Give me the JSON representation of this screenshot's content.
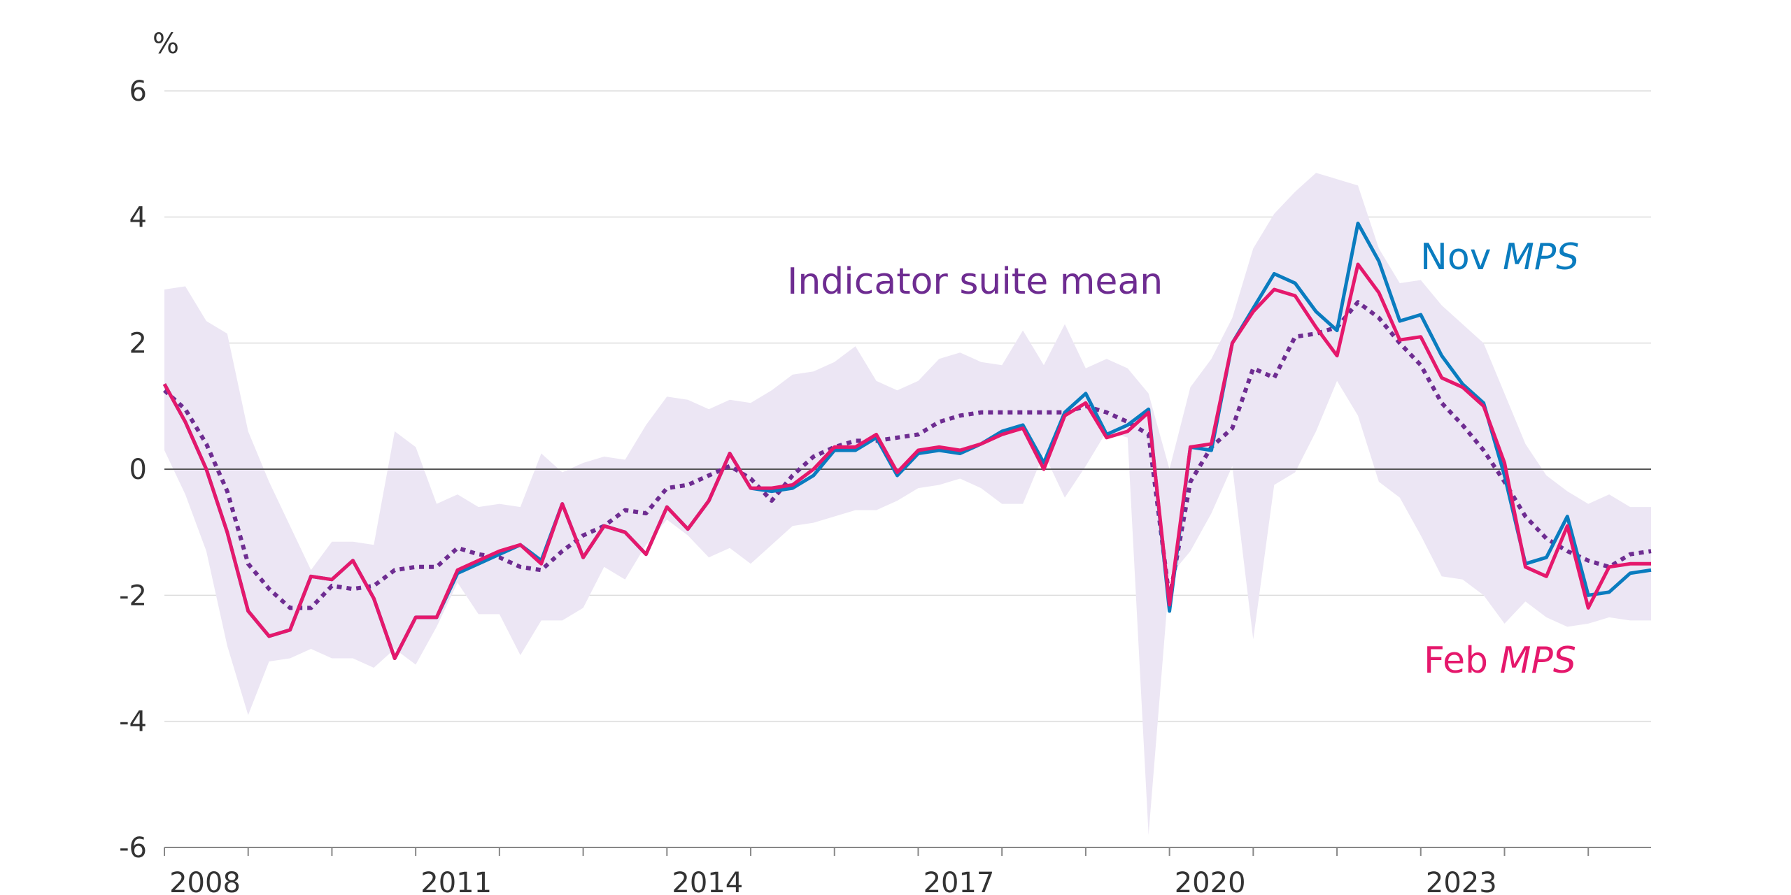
{
  "chart_data": {
    "type": "line",
    "ylabel": "%",
    "ylim": [
      -6,
      6
    ],
    "yticks": [
      6,
      4,
      2,
      0,
      -2,
      -4,
      -6
    ],
    "xlim": [
      2008.0,
      2025.75
    ],
    "xticks": [
      2008,
      2011,
      2014,
      2017,
      2020,
      2023
    ],
    "grid": true,
    "legend": "inline labels",
    "colors": {
      "range": "#ece6f4",
      "suite_mean": "#6e2c91",
      "nov": "#0a7cbf",
      "feb": "#e5186c",
      "grid": "#dddddd",
      "zero": "#555555",
      "axis": "#888888"
    },
    "annotations": [
      {
        "series": "suite_mean",
        "text": "Indicator suite mean"
      },
      {
        "series": "nov",
        "text": "Nov ",
        "italic": "MPS"
      },
      {
        "series": "feb",
        "text": "Feb ",
        "italic": "MPS"
      }
    ],
    "x": [
      2008.0,
      2008.25,
      2008.5,
      2008.75,
      2009.0,
      2009.25,
      2009.5,
      2009.75,
      2010.0,
      2010.25,
      2010.5,
      2010.75,
      2011.0,
      2011.25,
      2011.5,
      2011.75,
      2012.0,
      2012.25,
      2012.5,
      2012.75,
      2013.0,
      2013.25,
      2013.5,
      2013.75,
      2014.0,
      2014.25,
      2014.5,
      2014.75,
      2015.0,
      2015.25,
      2015.5,
      2015.75,
      2016.0,
      2016.25,
      2016.5,
      2016.75,
      2017.0,
      2017.25,
      2017.5,
      2017.75,
      2018.0,
      2018.25,
      2018.5,
      2018.75,
      2019.0,
      2019.25,
      2019.5,
      2019.75,
      2020.0,
      2020.25,
      2020.5,
      2020.75,
      2021.0,
      2021.25,
      2021.5,
      2021.75,
      2022.0,
      2022.25,
      2022.5,
      2022.75,
      2023.0,
      2023.25,
      2023.5,
      2023.75,
      2024.0,
      2024.25,
      2024.5,
      2024.75,
      2025.0,
      2025.25,
      2025.5,
      2025.75
    ],
    "range_upper": [
      2.85,
      2.9,
      2.35,
      2.15,
      0.6,
      -0.2,
      -0.9,
      -1.6,
      -1.15,
      -1.15,
      -1.2,
      0.6,
      0.35,
      -0.55,
      -0.4,
      -0.6,
      -0.55,
      -0.6,
      0.25,
      -0.05,
      0.1,
      0.2,
      0.15,
      0.7,
      1.15,
      1.1,
      0.95,
      1.1,
      1.05,
      1.25,
      1.5,
      1.55,
      1.7,
      1.95,
      1.4,
      1.25,
      1.4,
      1.75,
      1.85,
      1.7,
      1.65,
      2.2,
      1.65,
      2.3,
      1.6,
      1.75,
      1.6,
      1.2,
      0.0,
      1.3,
      1.75,
      2.4,
      3.5,
      4.05,
      4.4,
      4.7,
      4.6,
      4.5,
      3.5,
      2.95,
      3.0,
      2.6,
      2.3,
      2.0,
      1.2,
      0.4,
      -0.1,
      -0.35,
      -0.55,
      -0.4,
      -0.6,
      -0.6
    ],
    "range_lower": [
      0.3,
      -0.4,
      -1.3,
      -2.8,
      -3.9,
      -3.05,
      -3.0,
      -2.85,
      -3.0,
      -3.0,
      -3.15,
      -2.85,
      -3.1,
      -2.5,
      -1.8,
      -2.3,
      -2.3,
      -2.95,
      -2.4,
      -2.4,
      -2.2,
      -1.55,
      -1.75,
      -1.2,
      -0.8,
      -1.05,
      -1.4,
      -1.25,
      -1.5,
      -1.2,
      -0.9,
      -0.85,
      -0.75,
      -0.65,
      -0.65,
      -0.5,
      -0.3,
      -0.25,
      -0.15,
      -0.3,
      -0.55,
      -0.55,
      0.25,
      -0.45,
      0.05,
      0.6,
      0.5,
      -5.8,
      -1.7,
      -1.3,
      -0.7,
      0.05,
      -2.7,
      -0.25,
      -0.05,
      0.6,
      1.4,
      0.85,
      -0.2,
      -0.45,
      -1.05,
      -1.7,
      -1.75,
      -2.0,
      -2.45,
      -2.1,
      -2.35,
      -2.5,
      -2.45,
      -2.35,
      -2.4,
      -2.4
    ],
    "series": [
      {
        "key": "suite_mean",
        "name": "Indicator suite mean",
        "values": [
          1.25,
          0.95,
          0.4,
          -0.35,
          -1.5,
          -1.9,
          -2.2,
          -2.2,
          -1.85,
          -1.9,
          -1.85,
          -1.6,
          -1.55,
          -1.55,
          -1.25,
          -1.35,
          -1.4,
          -1.55,
          -1.6,
          -1.3,
          -1.05,
          -0.9,
          -0.65,
          -0.7,
          -0.3,
          -0.25,
          -0.1,
          0.05,
          -0.15,
          -0.5,
          -0.1,
          0.2,
          0.35,
          0.45,
          0.45,
          0.5,
          0.55,
          0.75,
          0.85,
          0.9,
          0.9,
          0.9,
          0.9,
          0.9,
          1.0,
          0.9,
          0.75,
          0.55,
          -2.05,
          -0.2,
          0.35,
          0.65,
          1.6,
          1.45,
          2.1,
          2.15,
          2.25,
          2.65,
          2.4,
          2.0,
          1.65,
          1.05,
          0.7,
          0.3,
          -0.2,
          -0.75,
          -1.1,
          -1.3,
          -1.45,
          -1.55,
          -1.35,
          -1.3
        ]
      },
      {
        "key": "nov",
        "name": "Nov MPS",
        "values": [
          1.35,
          0.75,
          0.0,
          -1.0,
          -2.25,
          -2.65,
          -2.55,
          -1.7,
          -1.75,
          -1.45,
          -2.05,
          -3.0,
          -2.35,
          -2.35,
          -1.65,
          -1.5,
          -1.35,
          -1.2,
          -1.45,
          -0.55,
          -1.4,
          -0.9,
          -1.0,
          -1.35,
          -0.6,
          -0.95,
          -0.5,
          0.25,
          -0.3,
          -0.35,
          -0.3,
          -0.1,
          0.3,
          0.3,
          0.5,
          -0.1,
          0.25,
          0.3,
          0.25,
          0.4,
          0.6,
          0.7,
          0.1,
          0.9,
          1.2,
          0.55,
          0.7,
          0.95,
          -2.25,
          0.35,
          0.3,
          2.0,
          2.55,
          3.1,
          2.95,
          2.5,
          2.2,
          3.9,
          3.3,
          2.35,
          2.45,
          1.8,
          1.35,
          1.05,
          -0.1,
          -1.5,
          -1.4,
          -0.75,
          -2.0,
          -1.95,
          -1.65,
          -1.6
        ]
      },
      {
        "key": "feb",
        "name": "Feb MPS",
        "values": [
          1.35,
          0.75,
          0.0,
          -1.0,
          -2.25,
          -2.65,
          -2.55,
          -1.7,
          -1.75,
          -1.45,
          -2.05,
          -3.0,
          -2.35,
          -2.35,
          -1.6,
          -1.45,
          -1.3,
          -1.2,
          -1.5,
          -0.55,
          -1.4,
          -0.9,
          -1.0,
          -1.35,
          -0.6,
          -0.95,
          -0.5,
          0.25,
          -0.3,
          -0.3,
          -0.25,
          0.0,
          0.35,
          0.35,
          0.55,
          -0.05,
          0.3,
          0.35,
          0.3,
          0.4,
          0.55,
          0.65,
          0.0,
          0.85,
          1.05,
          0.5,
          0.6,
          0.9,
          -2.15,
          0.35,
          0.4,
          2.0,
          2.5,
          2.85,
          2.75,
          2.25,
          1.8,
          3.25,
          2.8,
          2.05,
          2.1,
          1.45,
          1.3,
          1.0,
          0.1,
          -1.55,
          -1.7,
          -0.9,
          -2.2,
          -1.55,
          -1.5,
          -1.5
        ]
      }
    ]
  }
}
